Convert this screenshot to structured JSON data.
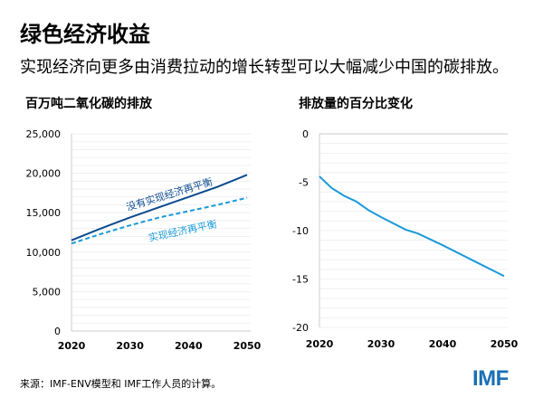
{
  "title": "绿色经济收益",
  "subtitle": "实现经济向更多由消费拉动的增长转型可以大幅减少中国的碳排放。",
  "source": "来源：IMF-ENV模型和 IMF工作人员的计算。",
  "logo": "IMF",
  "colors": {
    "dark_blue": "#0b4a8f",
    "light_blue": "#1a9ad9",
    "grid": "#eeeeee"
  },
  "chart_data": [
    {
      "type": "line",
      "title": "百万吨二氧化碳的排放",
      "xlim": [
        2020,
        2050
      ],
      "ylim": [
        0,
        25000
      ],
      "xticks": [
        2020,
        2030,
        2040,
        2050
      ],
      "yticks": [
        0,
        5000,
        10000,
        15000,
        20000,
        25000
      ],
      "ytick_labels": [
        "0",
        "5,000",
        "10,000",
        "15,000",
        "20,000",
        "25,000"
      ],
      "grid": true,
      "x": [
        2020,
        2025,
        2030,
        2035,
        2040,
        2045,
        2050
      ],
      "series": [
        {
          "name": "没有实现经济再平衡",
          "style": "solid",
          "color": "#0b4a8f",
          "values": [
            11500,
            13000,
            14400,
            15700,
            17000,
            18300,
            19800
          ]
        },
        {
          "name": "实现经济再平衡",
          "style": "dashed",
          "color": "#1a9ad9",
          "values": [
            11100,
            12300,
            13400,
            14400,
            15200,
            16000,
            16900
          ]
        }
      ]
    },
    {
      "type": "line",
      "title": "排放量的百分比变化",
      "xlim": [
        2020,
        2050
      ],
      "ylim": [
        -20,
        0
      ],
      "xticks": [
        2020,
        2030,
        2040,
        2050
      ],
      "yticks": [
        0,
        -5,
        -10,
        -15,
        -20
      ],
      "ytick_labels": [
        "0",
        "-5",
        "-10",
        "-15",
        "-20"
      ],
      "grid": true,
      "x": [
        2020,
        2022,
        2024,
        2026,
        2028,
        2030,
        2034,
        2036,
        2040,
        2045,
        2050
      ],
      "series": [
        {
          "style": "solid",
          "color": "#1a9ad9",
          "values": [
            -4.4,
            -5.6,
            -6.4,
            -7.0,
            -7.9,
            -8.6,
            -9.9,
            -10.3,
            -11.5,
            -13.1,
            -14.7
          ]
        }
      ]
    }
  ]
}
